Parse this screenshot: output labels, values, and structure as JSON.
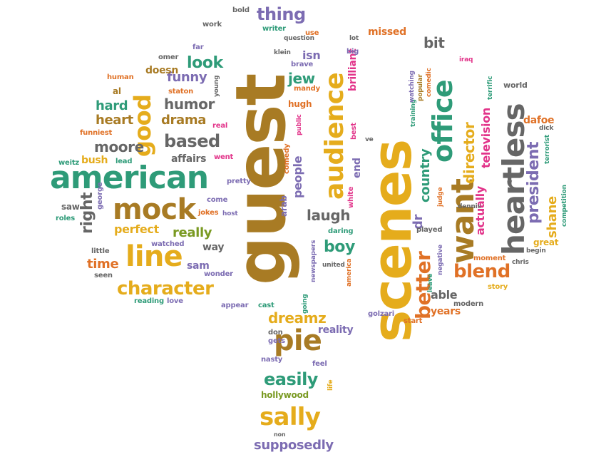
{
  "palette": {
    "brown": "#a87b24",
    "gold": "#e5ac1c",
    "green": "#2e9b78",
    "gray": "#666666",
    "purple": "#7c6cb2",
    "orange": "#e07126",
    "pink": "#e2348a",
    "olive": "#7a9a22"
  },
  "words": [
    "guest",
    "scenes",
    "american",
    "heartless",
    "want",
    "office",
    "audience",
    "mock",
    "line",
    "pie",
    "sally",
    "character",
    "good",
    "humor",
    "look",
    "based",
    "laugh",
    "dreamz",
    "easily",
    "boy",
    "blend",
    "president",
    "director",
    "funny",
    "drama",
    "moore",
    "right",
    "really",
    "perfect",
    "time",
    "heart",
    "hard",
    "thing",
    "jew",
    "country",
    "better",
    "bit",
    "television",
    "shane",
    "actually",
    "supposedly",
    "people",
    "years",
    "able",
    "missed",
    "brilliant",
    "doesn",
    "isn",
    "dr",
    "bush",
    "affairs",
    "sam",
    "end",
    "reality",
    "hollywood",
    "dafoe",
    "way",
    "little",
    "watched",
    "saw",
    "roles",
    "funniest",
    "weitz",
    "lead",
    "al",
    "human",
    "omer",
    "far",
    "work",
    "bold",
    "writer",
    "question",
    "use",
    "lot",
    "big",
    "klein",
    "brave",
    "mandy",
    "hugh",
    "real",
    "went",
    "pretty",
    "come",
    "jokes",
    "host",
    "george",
    "arab",
    "comedy",
    "public",
    "white",
    "best",
    "ve",
    "training",
    "popular",
    "comedic",
    "iraq",
    "terrific",
    "world",
    "dick",
    "terrorist",
    "competition",
    "great",
    "begin",
    "chris",
    "moment",
    "story",
    "modern",
    "start",
    "golzari",
    "going",
    "newspapers",
    "united",
    "daring",
    "america",
    "played",
    "judge",
    "negative",
    "leave",
    "dennis",
    "staton",
    "young",
    "seen",
    "reading",
    "love",
    "appear",
    "cast",
    "don",
    "gets",
    "nasty",
    "feel",
    "life",
    "non",
    "wonder",
    "watching"
  ]
}
